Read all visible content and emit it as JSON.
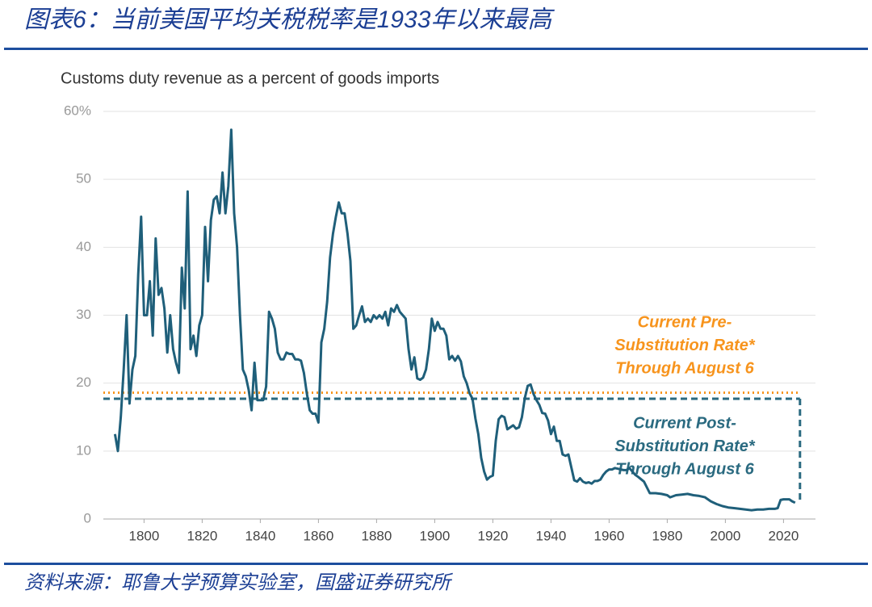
{
  "header": {
    "title": "图表6：当前美国平均关税税率是1933年以来最高"
  },
  "chart_data": {
    "type": "line",
    "title": "Customs duty revenue as a percent of goods imports",
    "x": [
      1790,
      1791,
      1792,
      1793,
      1794,
      1795,
      1796,
      1797,
      1798,
      1799,
      1800,
      1801,
      1802,
      1803,
      1804,
      1805,
      1806,
      1807,
      1808,
      1809,
      1810,
      1811,
      1812,
      1813,
      1814,
      1815,
      1816,
      1817,
      1818,
      1819,
      1820,
      1821,
      1822,
      1823,
      1824,
      1825,
      1826,
      1827,
      1828,
      1829,
      1830,
      1831,
      1832,
      1833,
      1834,
      1835,
      1836,
      1837,
      1838,
      1839,
      1840,
      1841,
      1842,
      1843,
      1844,
      1845,
      1846,
      1847,
      1848,
      1849,
      1850,
      1851,
      1852,
      1853,
      1854,
      1855,
      1856,
      1857,
      1858,
      1859,
      1860,
      1861,
      1862,
      1863,
      1864,
      1865,
      1866,
      1867,
      1868,
      1869,
      1870,
      1871,
      1872,
      1873,
      1874,
      1875,
      1876,
      1877,
      1878,
      1879,
      1880,
      1881,
      1882,
      1883,
      1884,
      1885,
      1886,
      1887,
      1888,
      1889,
      1890,
      1891,
      1892,
      1893,
      1894,
      1895,
      1896,
      1897,
      1898,
      1899,
      1900,
      1901,
      1902,
      1903,
      1904,
      1905,
      1906,
      1907,
      1908,
      1909,
      1910,
      1911,
      1912,
      1913,
      1914,
      1915,
      1916,
      1917,
      1918,
      1919,
      1920,
      1921,
      1922,
      1923,
      1924,
      1925,
      1926,
      1927,
      1928,
      1929,
      1930,
      1931,
      1932,
      1933,
      1934,
      1935,
      1936,
      1937,
      1938,
      1939,
      1940,
      1941,
      1942,
      1943,
      1944,
      1945,
      1946,
      1947,
      1948,
      1949,
      1950,
      1951,
      1952,
      1953,
      1954,
      1955,
      1956,
      1957,
      1958,
      1959,
      1960,
      1961,
      1962,
      1963,
      1964,
      1965,
      1966,
      1967,
      1968,
      1969,
      1970,
      1972,
      1974,
      1976,
      1978,
      1980,
      1981,
      1983,
      1985,
      1987,
      1989,
      1991,
      1993,
      1995,
      1997,
      1999,
      2001,
      2003,
      2005,
      2007,
      2009,
      2011,
      2013,
      2015,
      2017,
      2018,
      2019,
      2020,
      2021,
      2022,
      2023,
      2024
    ],
    "values": [
      12.5,
      10,
      15,
      22,
      30,
      17,
      22,
      24,
      36,
      44.5,
      30,
      30,
      35,
      27,
      41.3,
      33,
      34,
      31,
      24.5,
      30,
      25,
      23,
      21.5,
      37,
      31,
      48.2,
      25,
      27,
      24,
      28.5,
      30,
      43,
      35,
      44,
      47,
      47.5,
      45,
      51,
      45,
      49,
      57.3,
      45,
      40,
      30,
      22,
      21,
      19,
      16,
      23,
      17.5,
      17.5,
      17.5,
      19.5,
      30.5,
      29.5,
      28,
      24.5,
      23.5,
      23.5,
      24.5,
      24.3,
      24.3,
      23.5,
      23.5,
      23.3,
      21.5,
      18.5,
      16,
      15.5,
      15.5,
      14.2,
      26,
      28,
      32,
      38.5,
      42,
      44.5,
      46.6,
      45,
      45,
      42,
      38,
      28,
      28.5,
      30,
      31.3,
      29,
      29.5,
      29,
      30,
      29.5,
      30,
      29.5,
      30.5,
      28.5,
      31,
      30.5,
      31.5,
      30.5,
      30,
      29.5,
      25,
      22,
      23.8,
      20.7,
      20.5,
      20.8,
      22,
      25,
      29.5,
      27.7,
      29,
      28,
      28,
      27,
      23.5,
      24,
      23.3,
      24,
      23.2,
      21,
      20,
      18.5,
      17.7,
      14.8,
      12.5,
      9,
      7,
      5.8,
      6.2,
      6.4,
      11.5,
      14.7,
      15.2,
      15,
      13.2,
      13.5,
      13.8,
      13.3,
      13.5,
      15,
      17.8,
      19.6,
      19.8,
      18.4,
      17.5,
      16.8,
      15.6,
      15.5,
      14.5,
      12.5,
      13.6,
      11.5,
      11.5,
      9.5,
      9.3,
      9.5,
      7.6,
      5.7,
      5.5,
      6,
      5.5,
      5.3,
      5.4,
      5.2,
      5.6,
      5.6,
      5.8,
      6.5,
      7,
      7.3,
      7.3,
      7.5,
      7.4,
      7.3,
      7.2,
      7.2,
      7.5,
      7,
      6.5,
      6.2,
      5.5,
      3.8,
      3.8,
      3.7,
      3.5,
      3.2,
      3.5,
      3.6,
      3.7,
      3.5,
      3.4,
      3.2,
      2.6,
      2.2,
      1.9,
      1.7,
      1.6,
      1.5,
      1.4,
      1.3,
      1.4,
      1.4,
      1.5,
      1.5,
      1.6,
      2.8,
      2.9,
      2.9,
      2.9,
      2.6,
      2.4
    ],
    "color": "#1f5f7a",
    "xlim": [
      1786,
      2031
    ],
    "ylim": [
      0,
      60
    ],
    "xticks": [
      1800,
      1820,
      1840,
      1860,
      1880,
      1900,
      1920,
      1940,
      1960,
      1980,
      2000,
      2020
    ],
    "yticks": [
      0,
      10,
      20,
      30,
      40,
      50,
      {
        "value": 60,
        "label": "60%"
      }
    ],
    "grid": true,
    "reference_lines": [
      {
        "label": [
          "Current Pre-",
          "Substitution Rate*",
          "Through August 6"
        ],
        "value": 18.6,
        "color": "#f7941d",
        "style": "dotted"
      },
      {
        "label": [
          "Current Post-",
          "Substitution Rate*",
          "Through August 6"
        ],
        "value": 17.7,
        "color": "#2a6a80",
        "style": "dashed"
      }
    ]
  },
  "footer": {
    "source": "资料来源：耶鲁大学预算实验室，国盛证券研究所"
  }
}
